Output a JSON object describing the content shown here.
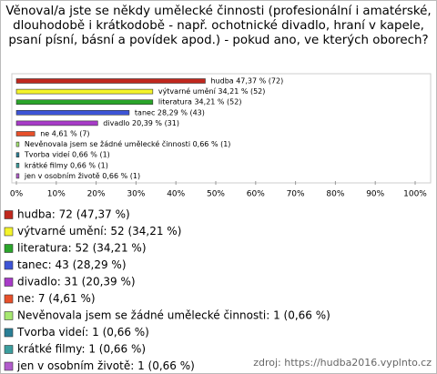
{
  "chart_data": {
    "type": "barh",
    "title": "Věnoval/a jste se někdy umělecké činnosti (profesionální i amatérské, dlouhodobě i krátkodobě - např. ochotnické divadlo, hraní v kapele, psaní písní, básní a povídek apod.) - pokud ano, ve kterých oborech?",
    "categories": [
      "hudba",
      "výtvarné umění",
      "literatura",
      "tanec",
      "divadlo",
      "ne",
      "Nevěnovala jsem se žádné umělecké činnosti",
      "Tvorba videí",
      "krátké filmy",
      "jen v osobním životě"
    ],
    "values": [
      47.37,
      34.21,
      34.21,
      28.29,
      20.39,
      4.61,
      0.66,
      0.66,
      0.66,
      0.66
    ],
    "value_labels": [
      "hudba 47,37 % (72)",
      "výtvarné umění 34,21 % (52)",
      "literatura 34,21 % (52)",
      "tanec 28,29 % (43)",
      "divadlo 20,39 % (31)",
      "ne 4,61 % (7)",
      "Nevěnovala jsem se žádné umělecké činnosti 0,66 % (1)",
      "Tvorba videí 0,66 % (1)",
      "krátké filmy 0,66 % (1)",
      "jen v osobním životě 0,66 % (1)"
    ],
    "legend_labels": [
      "hudba: 72 (47,37 %)",
      "výtvarné umění: 52 (34,21 %)",
      "literatura: 52 (34,21 %)",
      "tanec: 43 (28,29 %)",
      "divadlo: 31 (20,39 %)",
      "ne: 7 (4,61 %)",
      "Nevěnovala jsem se žádné umělecké činnosti: 1 (0,66 %)",
      "Tvorba videí: 1 (0,66 %)",
      "krátké filmy: 1 (0,66 %)",
      "jen v osobním životě: 1 (0,66 %)"
    ],
    "colors": [
      "#c0281e",
      "#f4f42a",
      "#2aa52a",
      "#3d54d6",
      "#a83bc8",
      "#e8502a",
      "#a6e870",
      "#2a7f96",
      "#3b9e9e",
      "#b25ccc"
    ],
    "xlim": [
      0,
      100
    ],
    "xticks": [
      {
        "value": 0,
        "label": "0%"
      },
      {
        "value": 10,
        "label": "10%"
      },
      {
        "value": 20,
        "label": "20%"
      },
      {
        "value": 30,
        "label": "30%"
      },
      {
        "value": 40,
        "label": "40%"
      },
      {
        "value": 50,
        "label": "50%"
      },
      {
        "value": 60,
        "label": "60%"
      },
      {
        "value": 70,
        "label": "70%"
      },
      {
        "value": 80,
        "label": "80%"
      },
      {
        "value": 90,
        "label": "90%"
      },
      {
        "value": 100,
        "label": "100%"
      }
    ],
    "source": "zdroj: https://hudba2016.vyplnto.cz"
  }
}
